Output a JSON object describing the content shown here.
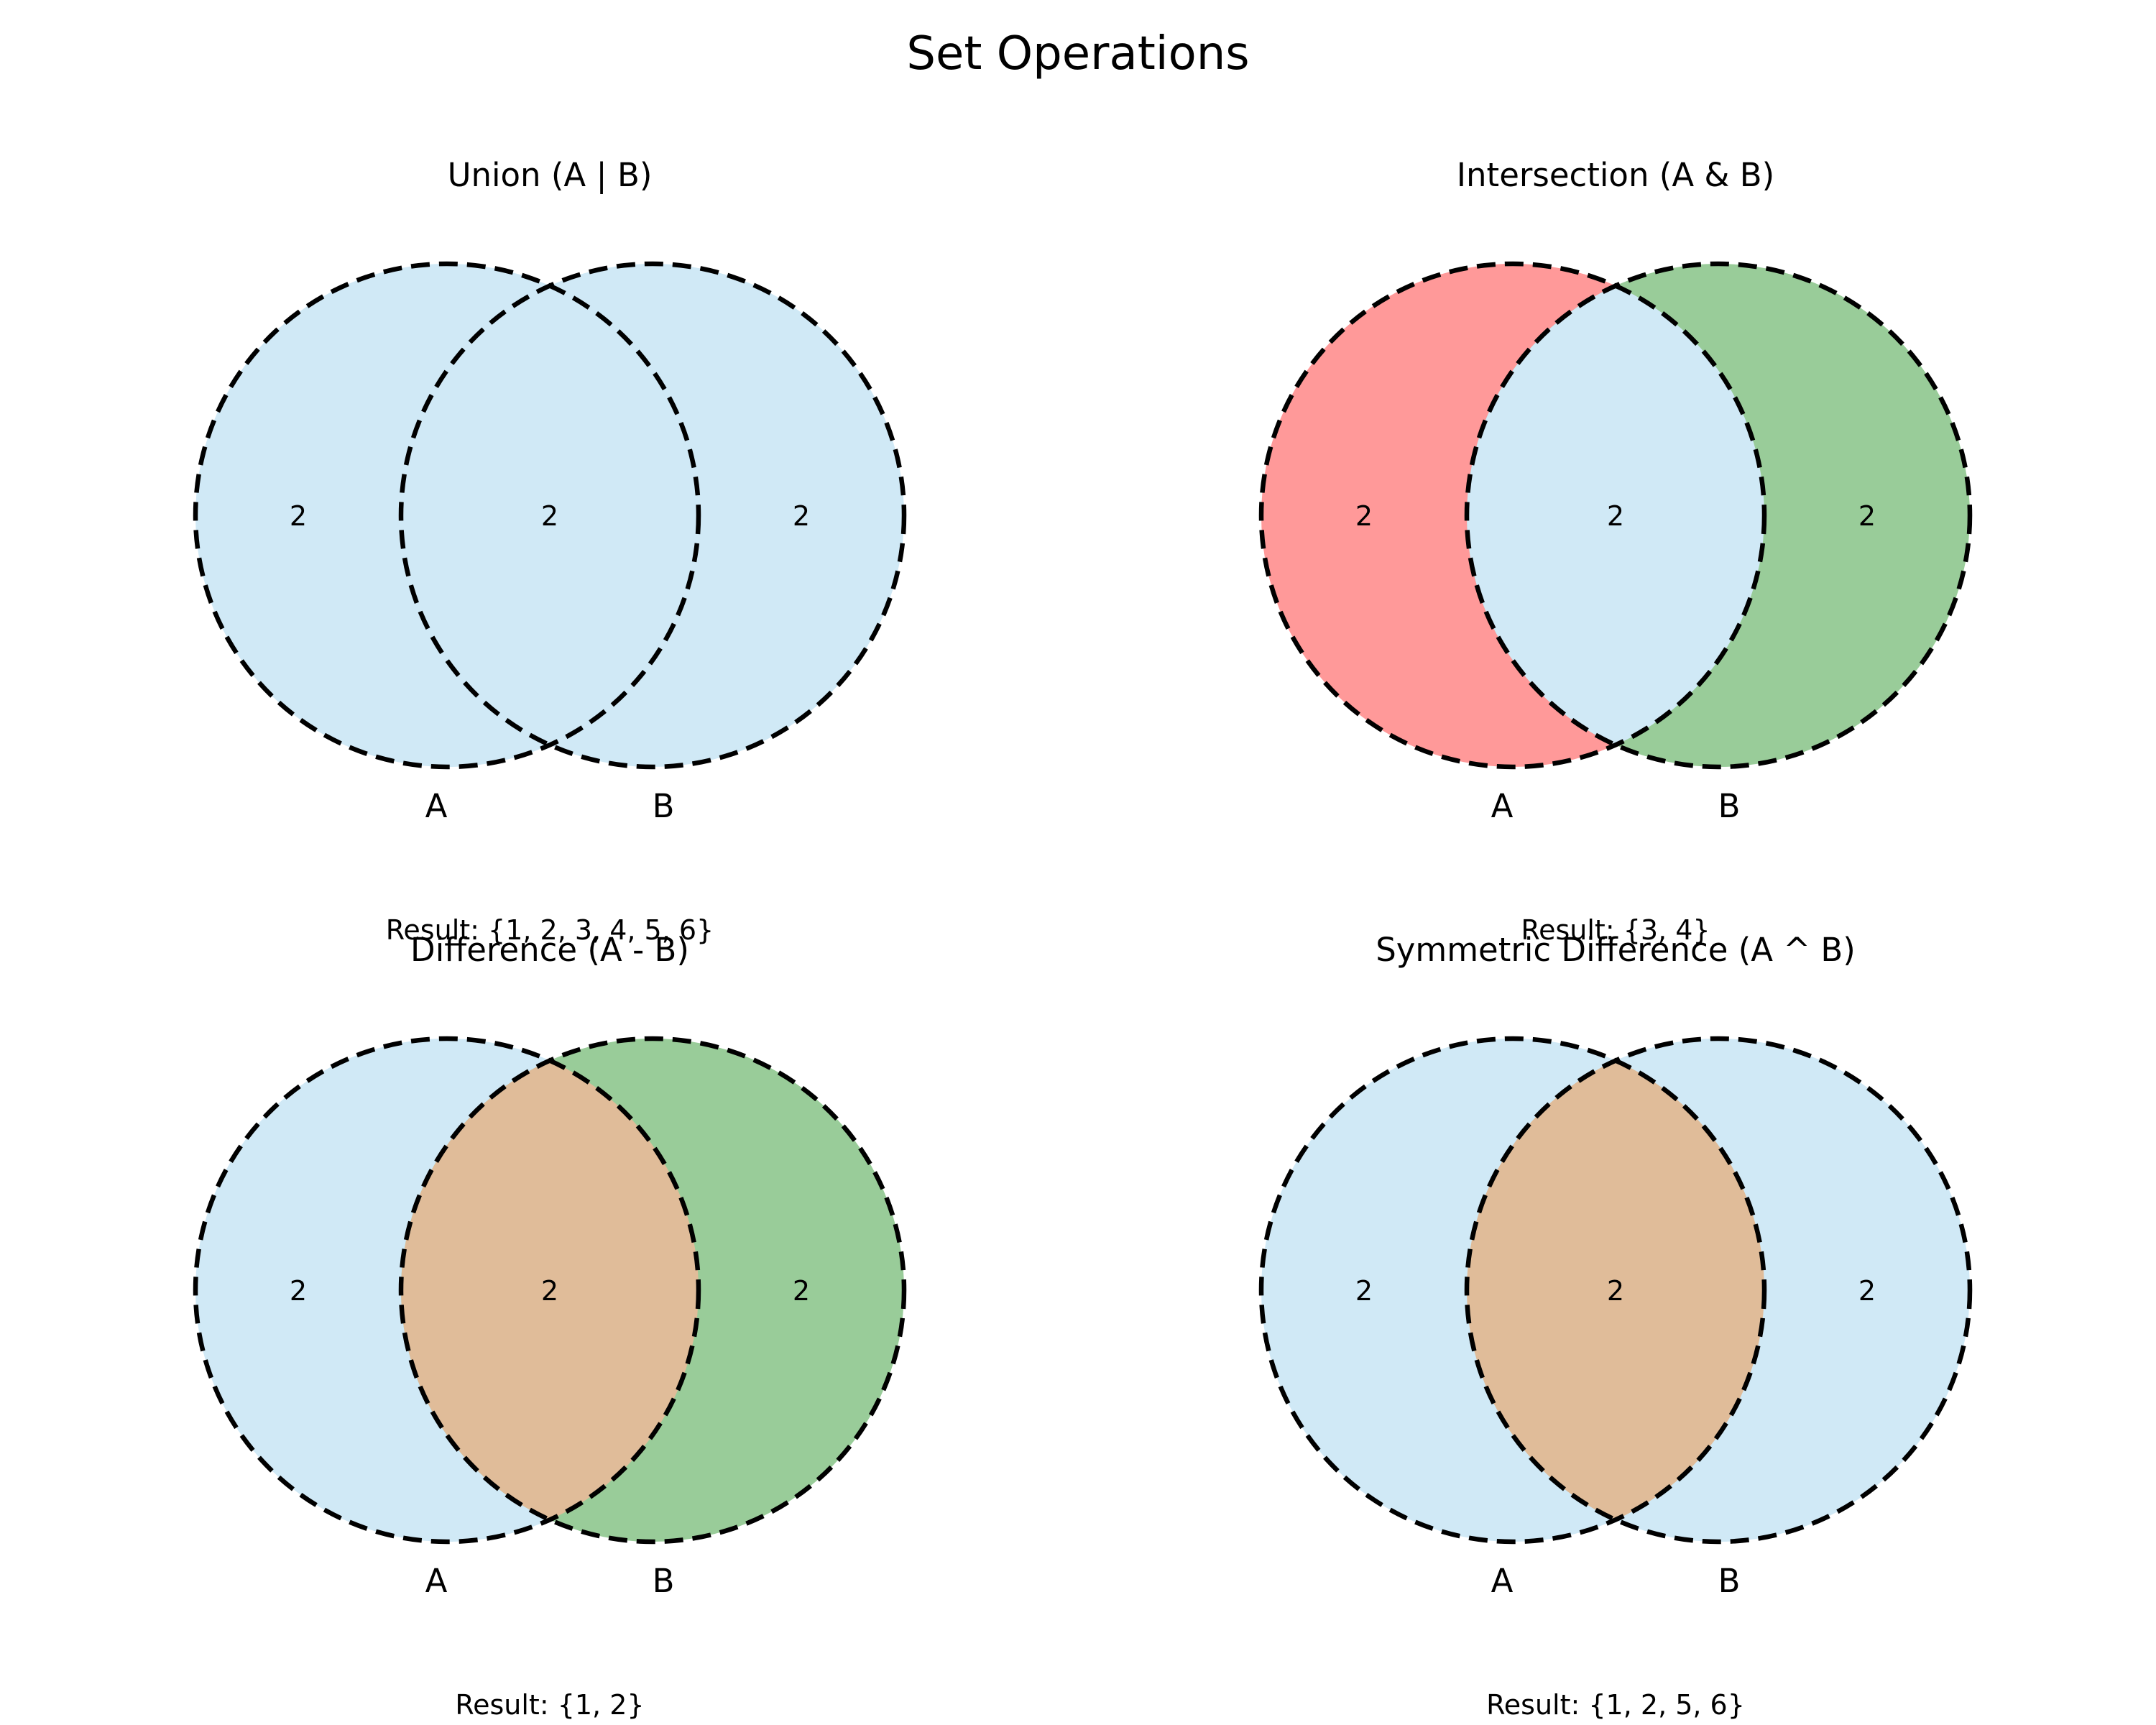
{
  "title": "Set Operations",
  "colors": {
    "base": "#d0e9f6",
    "red": "#ff9999",
    "green": "#99cc99",
    "highlight": "#e0bc99",
    "outline": "#000000"
  },
  "panels": [
    {
      "title": "Union (A | B)",
      "set_a_label": "A",
      "set_b_label": "B",
      "counts": {
        "a_only": "2",
        "both": "2",
        "b_only": "2"
      },
      "fills": {
        "a_only": "base",
        "both": "base",
        "b_only": "base"
      },
      "result": "Result: {1, 2, 3, 4, 5, 6}"
    },
    {
      "title": "Intersection (A & B)",
      "set_a_label": "A",
      "set_b_label": "B",
      "counts": {
        "a_only": "2",
        "both": "2",
        "b_only": "2"
      },
      "fills": {
        "a_only": "red",
        "both": "base",
        "b_only": "green"
      },
      "result": "Result: {3, 4}"
    },
    {
      "title": "Difference (A - B)",
      "set_a_label": "A",
      "set_b_label": "B",
      "counts": {
        "a_only": "2",
        "both": "2",
        "b_only": "2"
      },
      "fills": {
        "a_only": "base",
        "both": "highlight",
        "b_only": "green"
      },
      "result": "Result: {1, 2}"
    },
    {
      "title": "Symmetric Difference (A ^ B)",
      "set_a_label": "A",
      "set_b_label": "B",
      "counts": {
        "a_only": "2",
        "both": "2",
        "b_only": "2"
      },
      "fills": {
        "a_only": "base",
        "both": "highlight",
        "b_only": "base"
      },
      "result": "Result: {1, 2, 5, 6}"
    }
  ]
}
